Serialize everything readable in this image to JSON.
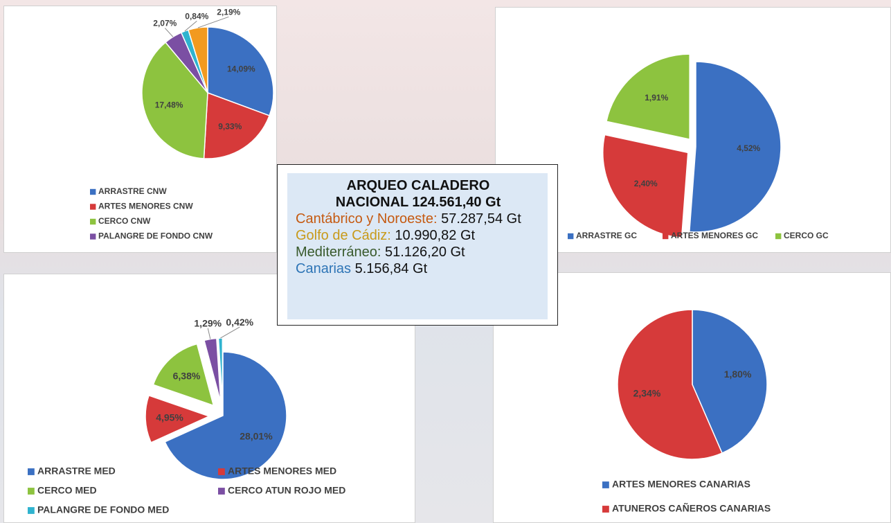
{
  "chart_data": [
    {
      "type": "pie",
      "categories": [
        "ARRASTRE CNW",
        "ARTES MENORES CNW",
        "CERCO CNW",
        "PALANGRE DE FONDO CNW",
        null,
        null
      ],
      "values": [
        14.09,
        9.33,
        17.48,
        2.07,
        0.84,
        2.19
      ],
      "value_labels": [
        "14,09%",
        "9,33%",
        "17,48%",
        "2,07%",
        "0,84%",
        "2,19%"
      ],
      "colors": [
        "#3b70c2",
        "#d63a3a",
        "#8dc33f",
        "#7b4fa3",
        "#2fb3cf",
        "#f29a1f"
      ]
    },
    {
      "type": "pie",
      "categories": [
        "ARRASTRE GC",
        "ARTES MENORES GC",
        "CERCO GC"
      ],
      "values": [
        4.52,
        2.4,
        1.91
      ],
      "value_labels": [
        "4,52%",
        "2,40%",
        "1,91%"
      ],
      "colors": [
        "#3b70c2",
        "#d63a3a",
        "#8dc33f"
      ],
      "exploded": [
        false,
        true,
        true
      ]
    },
    {
      "type": "pie",
      "categories": [
        "ARRASTRE MED",
        "ARTES MENORES MED",
        "CERCO MED",
        "CERCO ATUN ROJO MED",
        "PALANGRE DE FONDO MED"
      ],
      "values": [
        28.01,
        4.95,
        6.38,
        1.29,
        0.42
      ],
      "value_labels": [
        "28,01%",
        "4,95%",
        "6,38%",
        "1,29%",
        "0,42%"
      ],
      "colors": [
        "#3b70c2",
        "#d63a3a",
        "#8dc33f",
        "#7b4fa3",
        "#2fb3cf"
      ],
      "exploded": [
        false,
        true,
        true,
        true,
        true
      ]
    },
    {
      "type": "pie",
      "categories": [
        "ARTES MENORES CANARIAS",
        "ATUNEROS CAÑEROS CANARIAS"
      ],
      "values": [
        1.8,
        2.34
      ],
      "value_labels": [
        "1,80%",
        "2,34%"
      ],
      "colors": [
        "#3b70c2",
        "#d63a3a"
      ]
    }
  ],
  "info_box": {
    "title_lines": [
      "ARQUEO CALADERO",
      "NACIONAL 124.561,40 Gt"
    ],
    "items": [
      {
        "label": "Cantábrico y Noroeste:",
        "value": "57.287,54 Gt",
        "color": "#c55a11"
      },
      {
        "label": "Golfo de Cádiz:",
        "value": "10.990,82 Gt",
        "color": "#c89a1a"
      },
      {
        "label": "Mediterráneo:",
        "value": "51.126,20 Gt",
        "color": "#38592b"
      },
      {
        "label": "Canarias",
        "value": "5.156,84 Gt",
        "color": "#2e75b6"
      }
    ]
  }
}
